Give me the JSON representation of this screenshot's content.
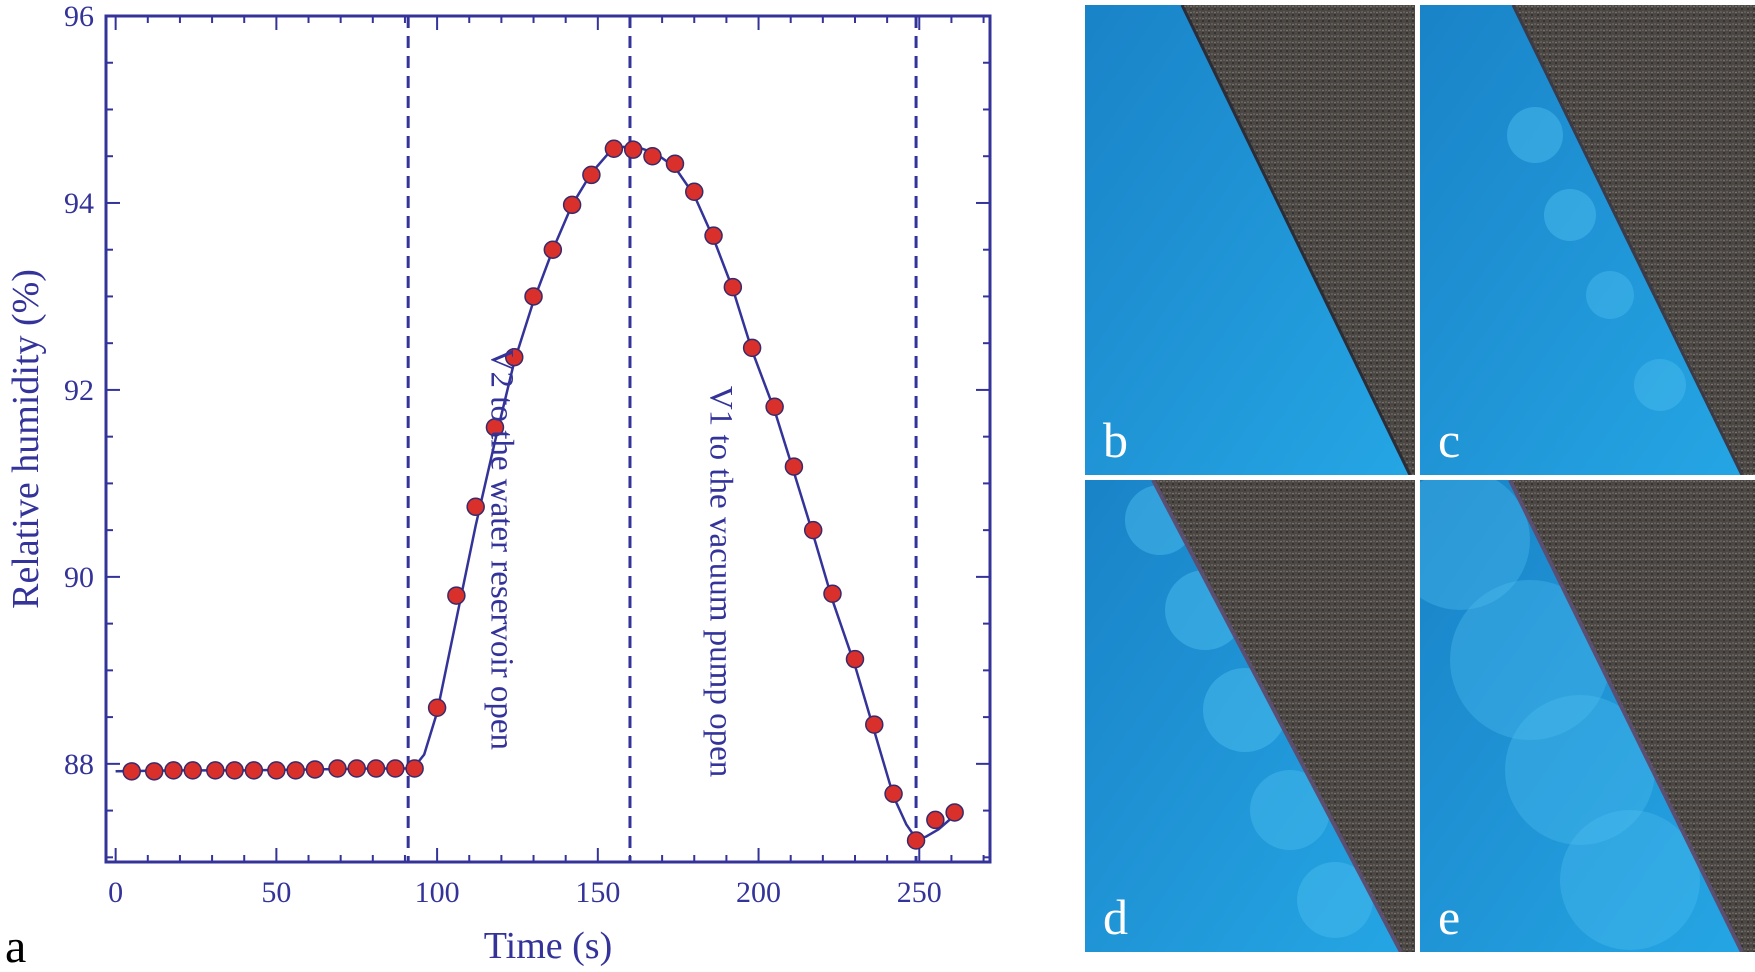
{
  "figure": {
    "panel_labels": {
      "a": "a",
      "b": "b",
      "c": "c",
      "d": "d",
      "e": "e"
    },
    "colors": {
      "axis": "#33339a",
      "marker": "#d9302c",
      "photo_blue": "#1f8fd0",
      "photo_dark": "#4a4642"
    }
  },
  "chart_data": {
    "type": "scatter",
    "xlabel": "Time (s)",
    "ylabel": "Relative humidity (%)",
    "xlim": [
      -3,
      272
    ],
    "ylim": [
      86.95,
      96
    ],
    "x_ticks": [
      0,
      50,
      100,
      150,
      200,
      250
    ],
    "y_ticks": [
      88,
      90,
      92,
      94,
      96
    ],
    "grid": false,
    "series": [
      {
        "marker": "circle",
        "x": [
          5,
          12,
          18,
          24,
          31,
          37,
          43,
          50,
          56,
          62,
          69,
          75,
          81,
          87,
          93,
          100,
          106,
          112,
          118,
          124,
          130,
          136,
          142,
          148,
          155,
          161,
          167,
          174,
          180,
          186,
          192,
          198,
          205,
          211,
          217,
          223,
          230,
          236,
          242,
          249,
          255,
          261
        ],
        "y": [
          87.92,
          87.92,
          87.93,
          87.93,
          87.93,
          87.93,
          87.93,
          87.93,
          87.93,
          87.94,
          87.95,
          87.95,
          87.95,
          87.95,
          87.95,
          88.6,
          89.8,
          90.75,
          91.6,
          92.35,
          93.0,
          93.5,
          93.98,
          94.3,
          94.58,
          94.57,
          94.5,
          94.42,
          94.12,
          93.65,
          93.1,
          92.45,
          91.82,
          91.18,
          90.5,
          89.82,
          89.12,
          88.42,
          87.68,
          87.18,
          87.4,
          87.48
        ]
      },
      {
        "line": "solid",
        "x": [
          0,
          20,
          40,
          60,
          80,
          90,
          93,
          96,
          100,
          106,
          112,
          118,
          124,
          130,
          136,
          142,
          148,
          153,
          158,
          163,
          168,
          174,
          180,
          186,
          192,
          198,
          205,
          211,
          217,
          223,
          230,
          236,
          242,
          246,
          249,
          252,
          256,
          262
        ],
        "y": [
          87.92,
          87.93,
          87.93,
          87.94,
          87.95,
          87.95,
          87.97,
          88.1,
          88.55,
          89.55,
          90.55,
          91.45,
          92.3,
          92.95,
          93.5,
          93.98,
          94.32,
          94.52,
          94.6,
          94.59,
          94.53,
          94.38,
          94.08,
          93.62,
          93.08,
          92.42,
          91.78,
          91.12,
          90.45,
          89.75,
          89.05,
          88.35,
          87.65,
          87.35,
          87.2,
          87.22,
          87.3,
          87.48
        ]
      }
    ],
    "vlines": [
      91,
      160,
      249
    ],
    "annotations": [
      {
        "text": "V2 to the water reservoir open",
        "x": 117,
        "y": 90.3,
        "rotation": 90
      },
      {
        "text": "V1 to the vacuum pump open",
        "x": 185,
        "y": 89.95,
        "rotation": 90
      }
    ]
  }
}
